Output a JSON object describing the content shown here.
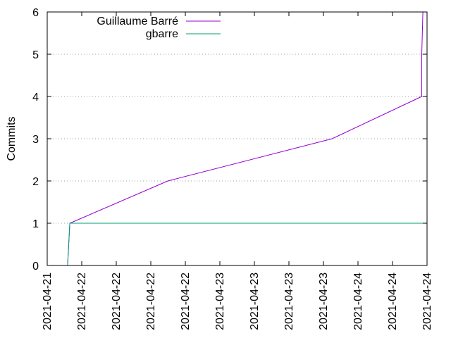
{
  "chart_data": {
    "type": "line",
    "title": "",
    "xlabel": "",
    "ylabel": "Commits",
    "ylim": [
      0,
      6
    ],
    "yticks": [
      "0",
      "1",
      "2",
      "3",
      "4",
      "5",
      "6"
    ],
    "xlim": [
      "2021-04-21 00:00",
      "2021-04-24 12:00"
    ],
    "xticks": [
      "2021-04-21",
      "2021-04-22",
      "2021-04-22",
      "2021-04-22",
      "2021-04-22",
      "2021-04-23",
      "2021-04-23",
      "2021-04-23",
      "2021-04-23",
      "2021-04-24",
      "2021-04-24",
      "2021-04-24"
    ],
    "grid": "horizontal dotted",
    "legend_position": "top-left",
    "series": [
      {
        "name": "Guillaume Barré",
        "color": "#9400d3",
        "points": [
          {
            "x": "2021-04-21 04:30",
            "y": 0
          },
          {
            "x": "2021-04-21 05:00",
            "y": 1
          },
          {
            "x": "2021-04-22 02:40",
            "y": 2
          },
          {
            "x": "2021-04-23 15:00",
            "y": 3
          },
          {
            "x": "2021-04-24 10:50",
            "y": 4
          },
          {
            "x": "2021-04-24 10:50",
            "y": 5
          },
          {
            "x": "2021-04-24 11:05",
            "y": 6
          }
        ]
      },
      {
        "name": "gbarre",
        "color": "#009e73",
        "points": [
          {
            "x": "2021-04-21 04:30",
            "y": 0
          },
          {
            "x": "2021-04-21 05:00",
            "y": 1
          },
          {
            "x": "2021-04-24 11:05",
            "y": 1
          }
        ]
      }
    ]
  }
}
